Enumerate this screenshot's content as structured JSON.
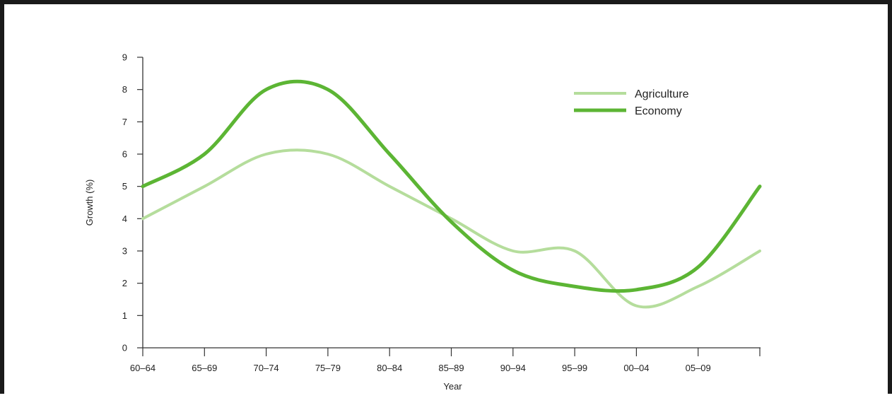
{
  "colors": {
    "agriculture": "#b5dd9c",
    "economy": "#5cb534",
    "axis": "#333333"
  },
  "chart_data": {
    "type": "line",
    "title": "",
    "xlabel": "Year",
    "ylabel": "Growth (%)",
    "ylim": [
      0,
      9
    ],
    "yticks": [
      0,
      1,
      2,
      3,
      4,
      5,
      6,
      7,
      8,
      9
    ],
    "categories": [
      "60–64",
      "65–69",
      "70–74",
      "75–79",
      "80–84",
      "85–89",
      "90–94",
      "95–99",
      "00–04",
      "05–09",
      ""
    ],
    "grid": false,
    "legend_position": "top-right",
    "series": [
      {
        "name": "Agriculture",
        "color": "#b5dd9c",
        "values": [
          4.0,
          5.0,
          6.0,
          6.0,
          5.0,
          4.0,
          3.0,
          3.0,
          1.3,
          1.9,
          3.0
        ]
      },
      {
        "name": "Economy",
        "color": "#5cb534",
        "values": [
          5.0,
          6.0,
          8.0,
          8.0,
          6.0,
          3.9,
          2.4,
          1.9,
          1.8,
          2.5,
          5.0
        ]
      }
    ]
  }
}
